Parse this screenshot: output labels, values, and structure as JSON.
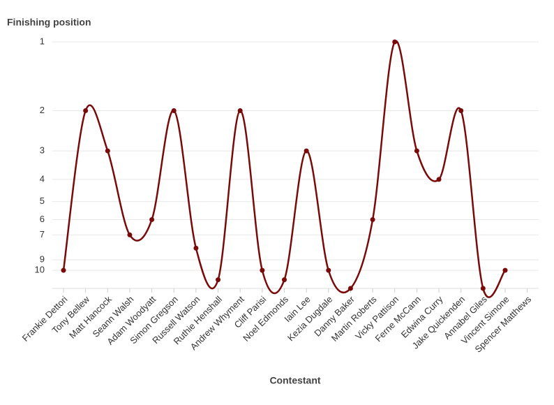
{
  "chart_data": {
    "type": "line",
    "y_label": "Finishing position",
    "x_label": "Contestant",
    "categories": [
      "Frankie Dettori",
      "Tony Bellew",
      "Matt Hancock",
      "Seann Walsh",
      "Adam Woodyatt",
      "Simon Gregson",
      "Russell Watson",
      "Ruthie Henshall",
      "Andrew Whyment",
      "Cliff Parisi",
      "Noel Edmonds",
      "Iain Lee",
      "Kezia Dugdale",
      "Danny Baker",
      "Martin Roberts",
      "Vicky Pattison",
      "Ferne McCann",
      "Edwina Curry",
      "Jake Quickenden",
      "Annabel Giles",
      "Vincent Simone",
      "Spencer Matthews"
    ],
    "series": [
      {
        "name": "Finishing position",
        "color": "#7a0a0a",
        "values": [
          10,
          2,
          3,
          7,
          6,
          2,
          8,
          11,
          2,
          10,
          11,
          3,
          10,
          12,
          6,
          1,
          3,
          4,
          2,
          12,
          10,
          null
        ]
      }
    ],
    "ylim": [
      1,
      12
    ],
    "yticks": [
      1,
      2,
      3,
      4,
      5,
      6,
      7,
      9,
      10
    ],
    "y_scale": "log",
    "y_inverted": true,
    "grid": true,
    "smooth": true
  }
}
